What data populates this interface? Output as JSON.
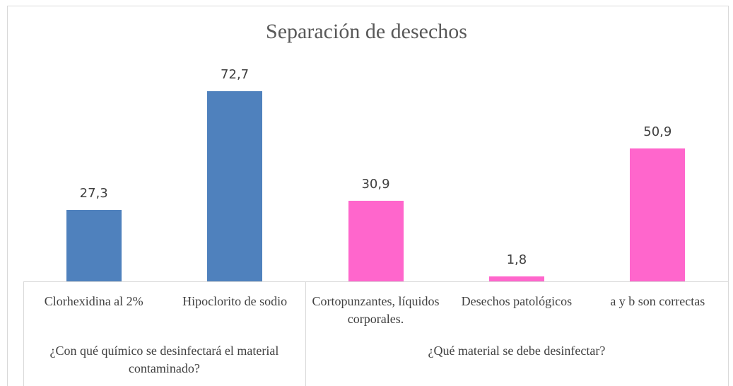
{
  "chart_data": {
    "type": "bar",
    "title": "Separación de desechos",
    "groups": [
      {
        "name": "¿Con qué químico se desinfectará el material contaminado?",
        "color": "#4f81bd",
        "categories": [
          "Clorhexidina al 2%",
          "Hipoclorito de sodio"
        ],
        "values": [
          27.3,
          72.7
        ],
        "value_labels": [
          "27,3",
          "72,7"
        ]
      },
      {
        "name": "¿Qué material se debe desinfectar?",
        "color": "#ff66cc",
        "categories": [
          "Cortopunzantes, líquidos corporales.",
          "Desechos patológicos",
          "a y b son correctas"
        ],
        "values": [
          30.9,
          1.8,
          50.9
        ],
        "value_labels": [
          "30,9",
          "1,8",
          "50,9"
        ]
      }
    ]
  }
}
